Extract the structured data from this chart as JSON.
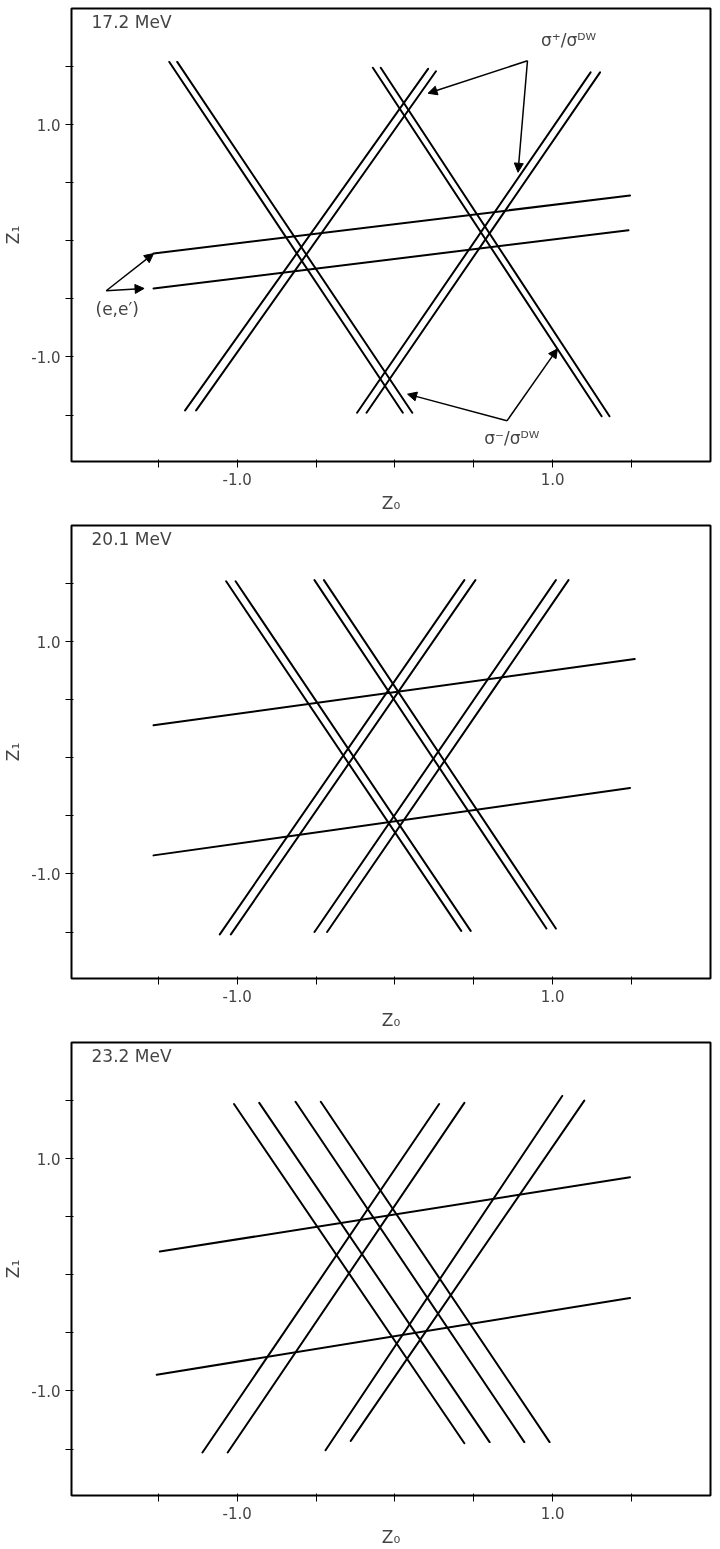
{
  "chart_data": [
    {
      "type": "line",
      "title": "17.2 MeV",
      "xlabel": "Z₀",
      "ylabel": "Z₁",
      "xlim": [
        -2.05,
        2.0
      ],
      "ylim": [
        -1.9,
        2.0
      ],
      "xticks": [
        {
          "value": -1.5,
          "label": null
        },
        {
          "value": -1.0,
          "label": "-1.0"
        },
        {
          "value": -0.5,
          "label": null
        },
        {
          "value": 0,
          "label": null
        },
        {
          "value": 0.5,
          "label": null
        },
        {
          "value": 1.0,
          "label": "1.0"
        },
        {
          "value": 1.5,
          "label": null
        }
      ],
      "yticks": [
        {
          "value": -1.5,
          "label": null
        },
        {
          "value": -1.0,
          "label": "-1.0"
        },
        {
          "value": -0.5,
          "label": null
        },
        {
          "value": 0,
          "label": null
        },
        {
          "value": 0.5,
          "label": null
        },
        {
          "value": 1.0,
          "label": "1.0"
        },
        {
          "value": 1.5,
          "label": null
        }
      ],
      "grid": false,
      "marker": "none",
      "line_style": "solid",
      "series": [
        {
          "color": "#000000",
          "x": [
            -1.53,
            1.49
          ],
          "values": [
            -0.11,
            0.39
          ]
        },
        {
          "color": "#000000",
          "x": [
            -1.53,
            1.48
          ],
          "values": [
            -0.41,
            0.09
          ]
        },
        {
          "color": "#000000",
          "x": [
            -1.43,
            0.05
          ],
          "values": [
            1.54,
            -1.48
          ]
        },
        {
          "color": "#000000",
          "x": [
            -1.38,
            0.11
          ],
          "values": [
            1.54,
            -1.48
          ]
        },
        {
          "color": "#000000",
          "x": [
            -1.33,
            0.21
          ],
          "values": [
            -1.46,
            1.48
          ]
        },
        {
          "color": "#000000",
          "x": [
            -1.26,
            0.26
          ],
          "values": [
            -1.46,
            1.46
          ]
        },
        {
          "color": "#000000",
          "x": [
            -0.14,
            1.31
          ],
          "values": [
            1.49,
            -1.51
          ]
        },
        {
          "color": "#000000",
          "x": [
            -0.09,
            1.36
          ],
          "values": [
            1.49,
            -1.51
          ]
        },
        {
          "color": "#000000",
          "x": [
            -0.24,
            1.24
          ],
          "values": [
            -1.48,
            1.45
          ]
        },
        {
          "color": "#000000",
          "x": [
            -0.18,
            1.3
          ],
          "values": [
            -1.48,
            1.45
          ]
        }
      ],
      "annotations": [
        {
          "text": "σ⁺/σᴰᵂ",
          "x": 0.78,
          "y": 0.59
        },
        {
          "text": "(e,e′)",
          "x": -1.53,
          "y": -0.11
        },
        {
          "text": "σ⁻/σᴰᵂ",
          "x": 1.03,
          "y": -0.93
        }
      ]
    },
    {
      "type": "line",
      "title": "20.1 MeV",
      "xlabel": "Z₀",
      "ylabel": "Z₁",
      "xlim": [
        -2.05,
        2.0
      ],
      "ylim": [
        -1.9,
        2.0
      ],
      "xticks": [
        {
          "value": -1.5,
          "label": null
        },
        {
          "value": -1.0,
          "label": "-1.0"
        },
        {
          "value": -0.5,
          "label": null
        },
        {
          "value": 0,
          "label": null
        },
        {
          "value": 0.5,
          "label": null
        },
        {
          "value": 1.0,
          "label": "1.0"
        },
        {
          "value": 1.5,
          "label": null
        }
      ],
      "yticks": [
        {
          "value": -1.5,
          "label": null
        },
        {
          "value": -1.0,
          "label": "-1.0"
        },
        {
          "value": -0.5,
          "label": null
        },
        {
          "value": 0,
          "label": null
        },
        {
          "value": 0.5,
          "label": null
        },
        {
          "value": 1.0,
          "label": "1.0"
        },
        {
          "value": 1.5,
          "label": null
        }
      ],
      "grid": false,
      "marker": "none",
      "line_style": "solid",
      "series": [
        {
          "color": "#000000",
          "x": [
            -1.53,
            1.52
          ],
          "values": [
            0.28,
            0.85
          ]
        },
        {
          "color": "#000000",
          "x": [
            -1.53,
            1.49
          ],
          "values": [
            -0.84,
            -0.26
          ]
        },
        {
          "color": "#000000",
          "x": [
            -1.07,
            0.42
          ],
          "values": [
            1.52,
            -1.49
          ]
        },
        {
          "color": "#000000",
          "x": [
            -1.01,
            0.48
          ],
          "values": [
            1.52,
            -1.49
          ]
        },
        {
          "color": "#000000",
          "x": [
            -0.51,
            0.96
          ],
          "values": [
            1.53,
            -1.47
          ]
        },
        {
          "color": "#000000",
          "x": [
            -0.45,
            1.02
          ],
          "values": [
            1.53,
            -1.47
          ]
        },
        {
          "color": "#000000",
          "x": [
            -1.11,
            0.44
          ],
          "values": [
            -1.52,
            1.53
          ]
        },
        {
          "color": "#000000",
          "x": [
            -1.04,
            0.51
          ],
          "values": [
            -1.52,
            1.53
          ]
        },
        {
          "color": "#000000",
          "x": [
            -0.51,
            1.02
          ],
          "values": [
            -1.5,
            1.53
          ]
        },
        {
          "color": "#000000",
          "x": [
            -0.43,
            1.1
          ],
          "values": [
            -1.5,
            1.53
          ]
        }
      ]
    },
    {
      "type": "line",
      "title": "23.2 MeV",
      "xlabel": "Z₀",
      "ylabel": "Z₁",
      "xlim": [
        -2.05,
        2.0
      ],
      "ylim": [
        -1.9,
        2.0
      ],
      "xticks": [
        {
          "value": -1.5,
          "label": null
        },
        {
          "value": -1.0,
          "label": "-1.0"
        },
        {
          "value": -0.5,
          "label": null
        },
        {
          "value": 0,
          "label": null
        },
        {
          "value": 0.5,
          "label": null
        },
        {
          "value": 1.0,
          "label": "1.0"
        },
        {
          "value": 1.5,
          "label": null
        }
      ],
      "yticks": [
        {
          "value": -1.5,
          "label": null
        },
        {
          "value": -1.0,
          "label": "-1.0"
        },
        {
          "value": -0.5,
          "label": null
        },
        {
          "value": 0,
          "label": null
        },
        {
          "value": 0.5,
          "label": null
        },
        {
          "value": 1.0,
          "label": "1.0"
        },
        {
          "value": 1.5,
          "label": null
        }
      ],
      "grid": false,
      "marker": "none",
      "line_style": "solid",
      "series": [
        {
          "color": "#000000",
          "x": [
            -1.49,
            1.49
          ],
          "values": [
            0.2,
            0.84
          ]
        },
        {
          "color": "#000000",
          "x": [
            -1.51,
            1.49
          ],
          "values": [
            -0.86,
            -0.2
          ]
        },
        {
          "color": "#000000",
          "x": [
            -1.02,
            0.44
          ],
          "values": [
            1.47,
            -1.45
          ]
        },
        {
          "color": "#000000",
          "x": [
            -0.86,
            0.6
          ],
          "values": [
            1.48,
            -1.44
          ]
        },
        {
          "color": "#000000",
          "x": [
            -0.63,
            0.82
          ],
          "values": [
            1.49,
            -1.44
          ]
        },
        {
          "color": "#000000",
          "x": [
            -0.47,
            0.98
          ],
          "values": [
            1.49,
            -1.44
          ]
        },
        {
          "color": "#000000",
          "x": [
            -1.22,
            0.28
          ],
          "values": [
            -1.53,
            1.47
          ]
        },
        {
          "color": "#000000",
          "x": [
            -1.06,
            0.44
          ],
          "values": [
            -1.53,
            1.48
          ]
        },
        {
          "color": "#000000",
          "x": [
            -0.44,
            1.06
          ],
          "values": [
            -1.51,
            1.54
          ]
        },
        {
          "color": "#000000",
          "x": [
            -0.28,
            1.2
          ],
          "values": [
            -1.43,
            1.5
          ]
        }
      ]
    }
  ]
}
